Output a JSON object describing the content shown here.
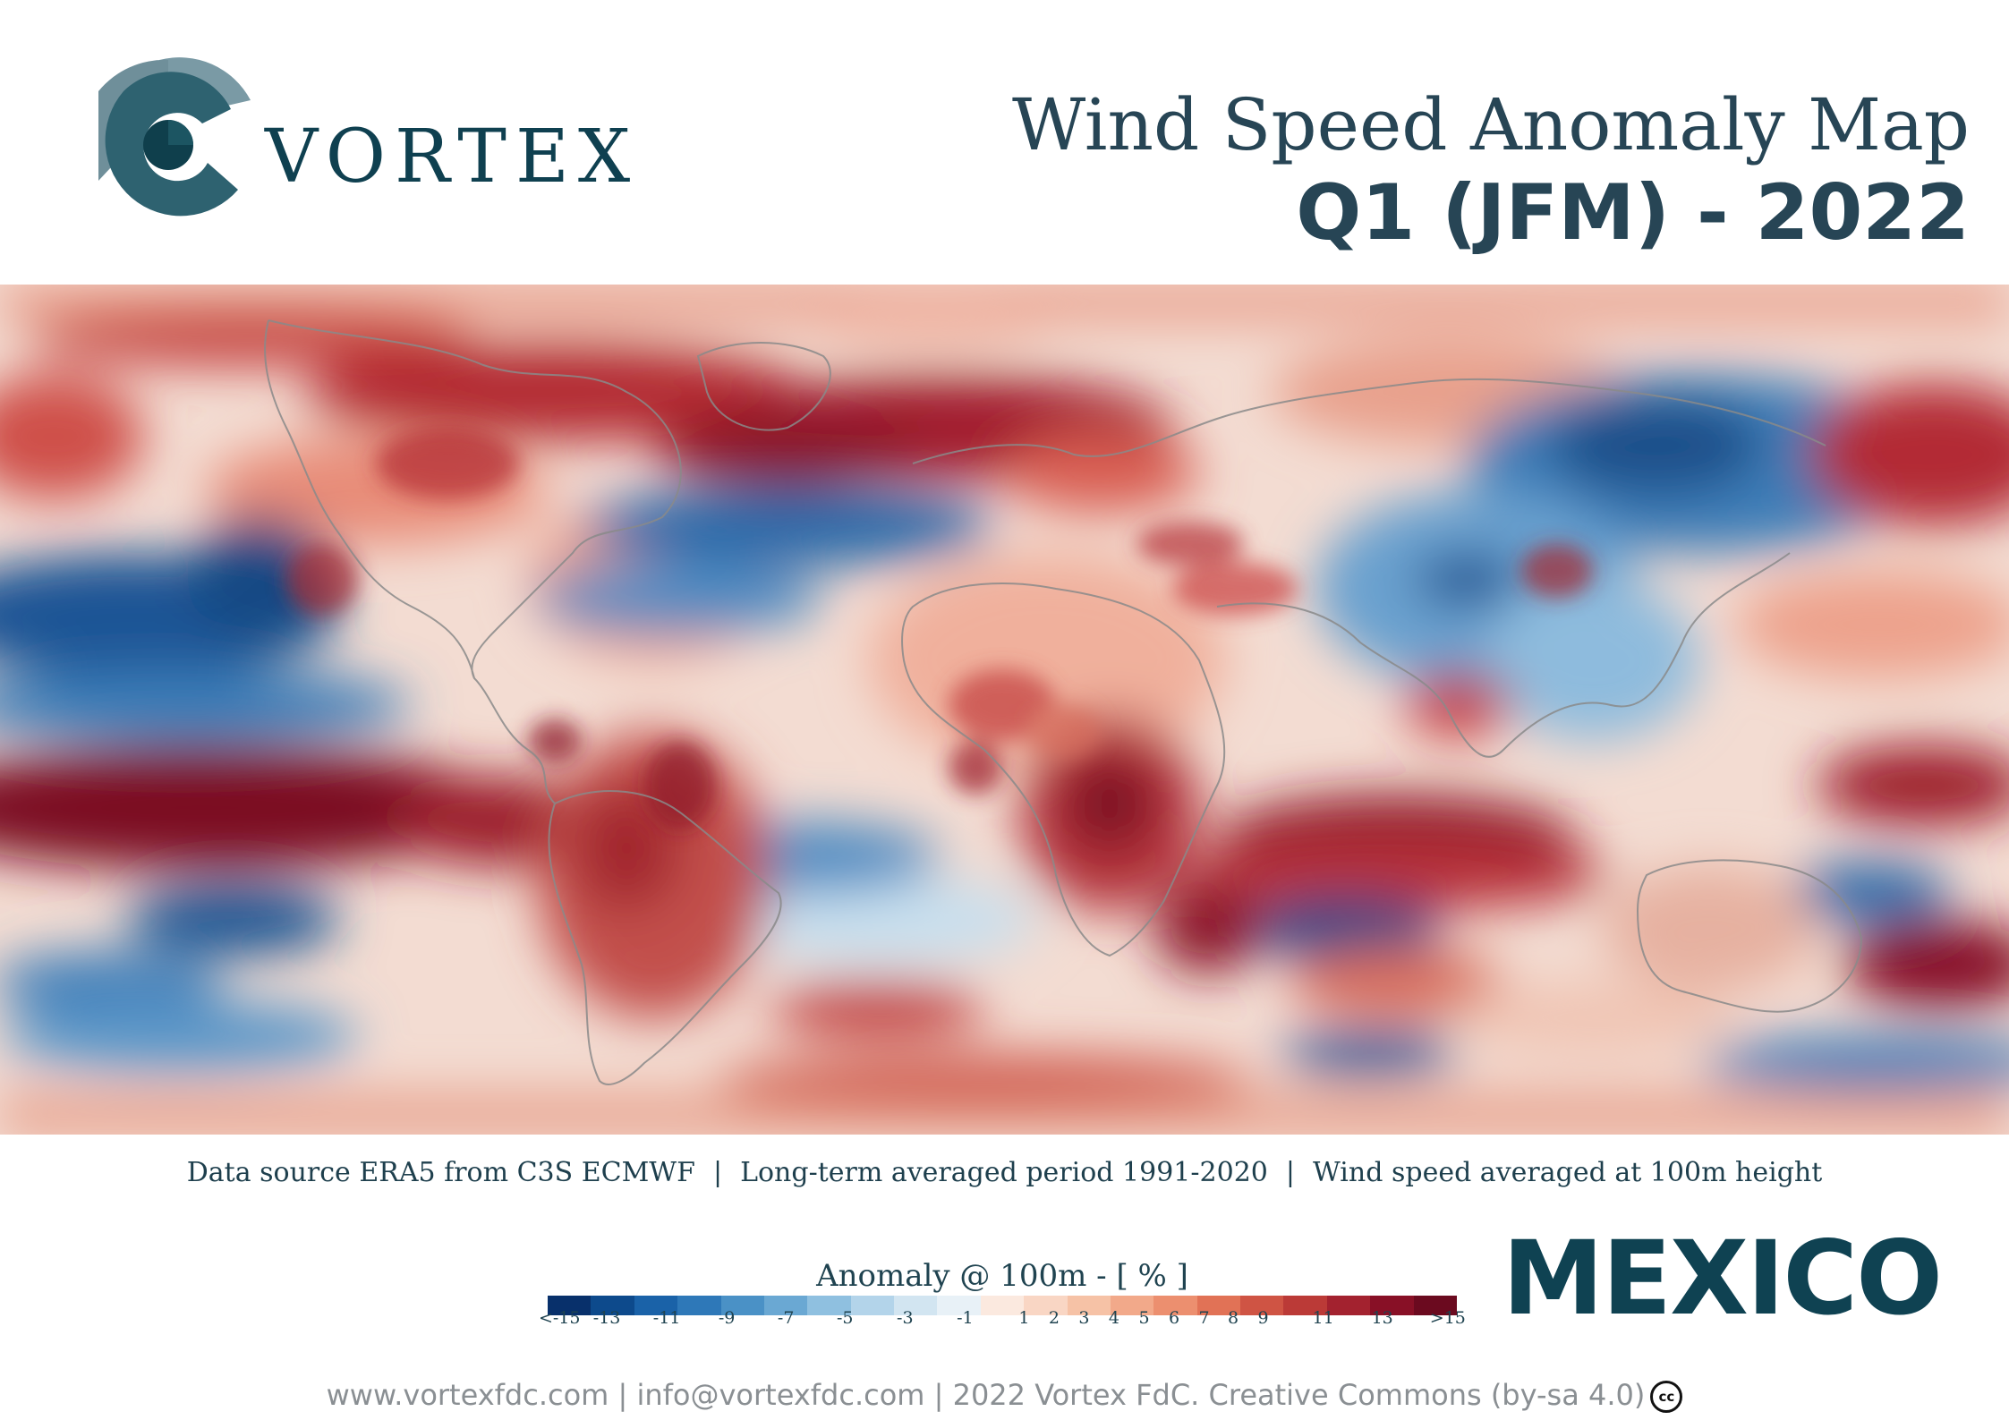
{
  "brand": {
    "name": "VORTEX"
  },
  "header": {
    "title": "Wind Speed Anomaly Map",
    "period": "Q1 (JFM) - 2022"
  },
  "map": {
    "colors": {
      "strong_negative": "#0c4a84",
      "negative": "#4a8bc2",
      "weak_negative": "#c9e0ef",
      "neutral": "#f7f7f7",
      "weak_positive": "#f4c0a8",
      "positive": "#d6604d",
      "strong_positive": "#7a0f25",
      "coastline": "#8a8a8a"
    }
  },
  "source_line": {
    "part1": "Data source ERA5 from C3S ECMWF",
    "part2": "Long-term averaged period 1991-2020",
    "part3": "Wind speed averaged at 100m height",
    "separator": "|"
  },
  "country": "MEXICO",
  "colorbar": {
    "title": "Anomaly @ 100m - [ % ]",
    "colors": [
      "#08306b",
      "#0d4a8c",
      "#1a62a8",
      "#2e78b8",
      "#4a91c6",
      "#6aa8d3",
      "#8fc0e0",
      "#b3d4ea",
      "#d2e5f1",
      "#e8f1f7",
      "#fbe9df",
      "#f9d6c4",
      "#f6c2a6",
      "#f2a98a",
      "#ec8f6f",
      "#e17256",
      "#cf5444",
      "#bb3a37",
      "#a3222f",
      "#881026",
      "#6b0a1f"
    ],
    "ticks": [
      {
        "label": "<-15",
        "value": -15
      },
      {
        "label": "-13",
        "value": -13
      },
      {
        "label": "-11",
        "value": -11
      },
      {
        "label": "-9",
        "value": -9
      },
      {
        "label": "-7",
        "value": -7
      },
      {
        "label": "-5",
        "value": -5
      },
      {
        "label": "-3",
        "value": -3
      },
      {
        "label": "-1",
        "value": -1
      },
      {
        "label": "1",
        "value": 1
      },
      {
        "label": "2",
        "value": 2
      },
      {
        "label": "3",
        "value": 3
      },
      {
        "label": "4",
        "value": 4
      },
      {
        "label": "5",
        "value": 5
      },
      {
        "label": "6",
        "value": 6
      },
      {
        "label": "7",
        "value": 7
      },
      {
        "label": "8",
        "value": 8
      },
      {
        "label": "9",
        "value": 9
      },
      {
        "label": "11",
        "value": 11
      },
      {
        "label": "13",
        "value": 13
      },
      {
        "label": ">15",
        "value": 15
      }
    ]
  },
  "footer": {
    "text": "www.vortexfdc.com | info@vortexfdc.com | 2022 Vortex FdC.  Creative Commons (by-sa 4.0)",
    "cc_badge": "cc"
  }
}
